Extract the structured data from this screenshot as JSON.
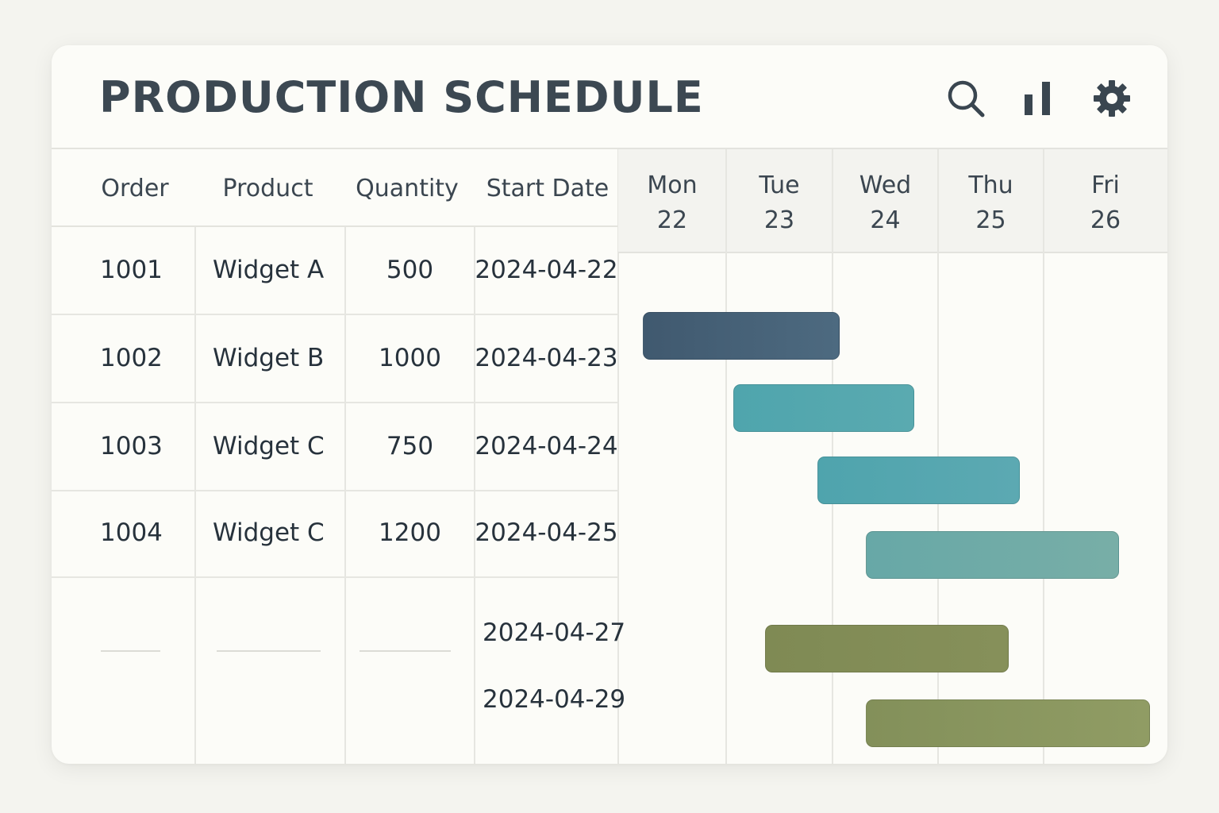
{
  "header": {
    "title": "PRODUCTION SCHEDULE",
    "icons": [
      "search-icon",
      "bar-chart-icon",
      "gear-icon"
    ]
  },
  "table": {
    "columns": [
      "Order",
      "Product",
      "Quantity",
      "Start Date"
    ],
    "rows": [
      {
        "order": "1001",
        "product": "Widget A",
        "quantity": "500",
        "start": "2024-04-22"
      },
      {
        "order": "1002",
        "product": "Widget B",
        "quantity": "1000",
        "start": "2024-04-23"
      },
      {
        "order": "1003",
        "product": "Widget C",
        "quantity": "750",
        "start": "2024-04-24"
      },
      {
        "order": "1004",
        "product": "Widget C",
        "quantity": "1200",
        "start": "2024-04-25"
      }
    ],
    "extra_dates": [
      "2024-04-27",
      "2024-04-29"
    ]
  },
  "gantt": {
    "days": [
      {
        "name": "Mon",
        "date": "22"
      },
      {
        "name": "Tue",
        "date": "23"
      },
      {
        "name": "Wed",
        "date": "24"
      },
      {
        "name": "Thu",
        "date": "25"
      },
      {
        "name": "Fri",
        "date": "26"
      }
    ],
    "bars": [
      {
        "start": 0.16,
        "end": 2.0,
        "color": "#40596f",
        "color2": "#4d6a80"
      },
      {
        "start": 1.0,
        "end": 2.71,
        "color": "#4fa5ad",
        "color2": "#5aaab0"
      },
      {
        "start": 1.79,
        "end": 3.71,
        "color": "#4fa4ad",
        "color2": "#5ca9b2"
      },
      {
        "start": 2.25,
        "end": 4.55,
        "color": "#67a8a7",
        "color2": "#78aea7"
      },
      {
        "start": 1.3,
        "end": 3.6,
        "color": "#7f8a54",
        "color2": "#86905a"
      },
      {
        "start": 2.25,
        "end": 4.8,
        "color": "#83905a",
        "color2": "#909c64"
      }
    ],
    "colors": {
      "border": "rgba(0,0,0,0.12)"
    }
  }
}
